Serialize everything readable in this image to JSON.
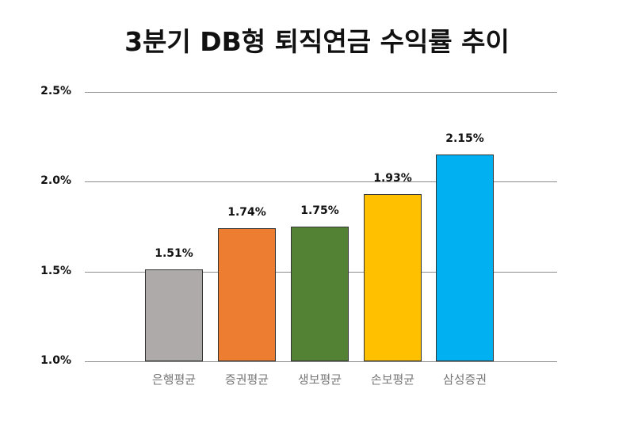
{
  "chart_data": {
    "type": "bar",
    "title": "3분기 DB형 퇴직연금 수익률 추이",
    "xlabel": "",
    "ylabel": "",
    "categories": [
      "은행평균",
      "증권평균",
      "생보평균",
      "손보평균",
      "삼성증권"
    ],
    "values": [
      1.51,
      1.74,
      1.75,
      1.93,
      2.15
    ],
    "value_labels": [
      "1.51%",
      "1.74%",
      "1.75%",
      "1.93%",
      "2.15%"
    ],
    "colors": [
      "#aeaaaa",
      "#ed7d31",
      "#548235",
      "#ffc000",
      "#00b0f0"
    ],
    "ylim": [
      1.0,
      2.5
    ],
    "yticks": [
      1.0,
      1.5,
      2.0,
      2.5
    ],
    "ytick_labels": [
      "1.0%",
      "1.5%",
      "2.0%",
      "2.5%"
    ],
    "grid": true,
    "legend": null
  }
}
